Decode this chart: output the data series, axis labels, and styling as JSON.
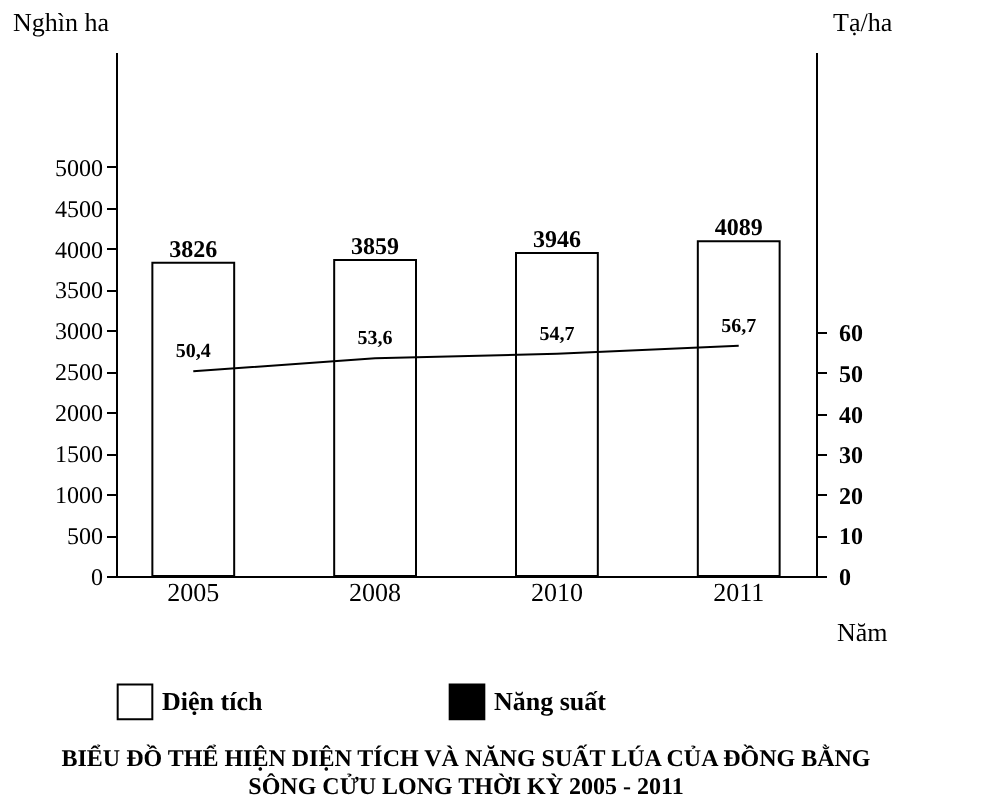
{
  "chart_data": {
    "type": "bar",
    "title": "BIỂU ĐỒ THỂ HIỆN DIỆN TÍCH VÀ NĂNG SUẤT LÚA CỦA ĐỒNG BẰNG SÔNG CỬU LONG THỜI KỲ 2005 - 2011",
    "xlabel": "Năm",
    "ylabel": "Nghìn ha",
    "y2label": "Tạ/ha",
    "categories": [
      "2005",
      "2008",
      "2010",
      "2011"
    ],
    "series": [
      {
        "name": "Diện tích",
        "color": "#ffffff",
        "values": [
          3826,
          3859,
          3946,
          4089
        ],
        "value_labels": [
          "3826",
          "3859",
          "3946",
          "4089"
        ]
      },
      {
        "name": "Năng suất",
        "type": "line",
        "axis": "y2",
        "color": "#000000",
        "values": [
          50.4,
          53.6,
          54.7,
          56.7
        ],
        "value_labels": [
          "50,4",
          "53,6",
          "54,7",
          "56,7"
        ]
      }
    ],
    "ylim": [
      0,
      6400
    ],
    "yticks": [
      0,
      500,
      1000,
      1500,
      2000,
      2500,
      3000,
      3500,
      4000,
      4500,
      5000
    ],
    "y2lim": [
      0,
      129
    ],
    "y2ticks": [
      0,
      10,
      20,
      30,
      40,
      50,
      60
    ],
    "legend": "bottom"
  }
}
